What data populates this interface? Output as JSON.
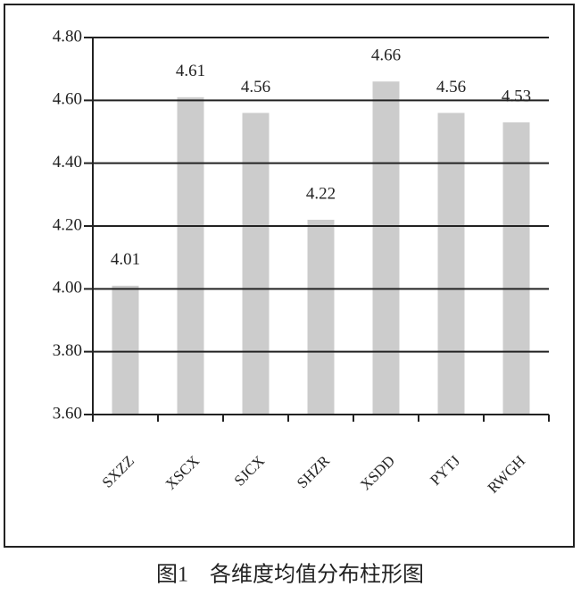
{
  "chart_data": {
    "type": "bar",
    "caption": "图1　各维度均值分布柱形图",
    "categories": [
      "SXZZ",
      "XSCX",
      "SJCX",
      "SHZR",
      "XSDD",
      "PYTJ",
      "RWGH"
    ],
    "values": [
      4.01,
      4.61,
      4.56,
      4.22,
      4.66,
      4.56,
      4.53
    ],
    "color": "#cccccc",
    "ylim": [
      3.6,
      4.8
    ],
    "yticks": [
      {
        "value": 3.6,
        "label": "3.60"
      },
      {
        "value": 3.8,
        "label": "3.80"
      },
      {
        "value": 4.0,
        "label": "4.00"
      },
      {
        "value": 4.2,
        "label": "4.20"
      },
      {
        "value": 4.4,
        "label": "4.40"
      },
      {
        "value": 4.6,
        "label": "4.60"
      },
      {
        "value": 4.8,
        "label": "4.80"
      }
    ],
    "grid": true
  }
}
